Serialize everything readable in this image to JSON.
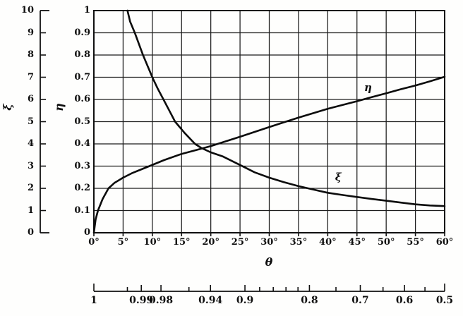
{
  "figure": {
    "background": "#fefefd",
    "ink_color": "#101010",
    "description": "Scanned textbook chart: curves η(θ) rising and ξ(θ) falling versus angle θ, with auxiliary cos θ scale below"
  },
  "chart_data": {
    "type": "line",
    "title": "",
    "grid": true,
    "legend_position": "inline-curve-labels",
    "axes": {
      "theta": {
        "title": "θ",
        "position": "bottom",
        "min": 0,
        "max": 60,
        "unit": "degrees",
        "tick_values": [
          0,
          5,
          10,
          15,
          20,
          25,
          30,
          35,
          40,
          45,
          50,
          55,
          60
        ],
        "tick_labels": [
          "0°",
          "5°",
          "10°",
          "15°",
          "20°",
          "25°",
          "30°",
          "35°",
          "40°",
          "45°",
          "50°",
          "55°",
          "60°"
        ]
      },
      "xi": {
        "title": "ξ",
        "position": "outer-left",
        "min": 0,
        "max": 10,
        "tick_values": [
          0,
          1,
          2,
          3,
          4,
          5,
          6,
          7,
          8,
          9,
          10
        ],
        "tick_labels": [
          "0",
          "1",
          "2",
          "3",
          "4",
          "5",
          "6",
          "7",
          "8",
          "9",
          "10"
        ]
      },
      "eta": {
        "title": "η",
        "position": "inner-left",
        "min": 0,
        "max": 1,
        "tick_values": [
          0,
          0.1,
          0.2,
          0.3,
          0.4,
          0.5,
          0.6,
          0.7,
          0.8,
          0.9,
          1
        ],
        "tick_labels": [
          "0",
          "0.1",
          "0.2",
          "0.3",
          "0.4",
          "0.5",
          "0.6",
          "0.7",
          "0.8",
          "0.9",
          "1"
        ]
      },
      "cos_theta": {
        "description": "auxiliary nonlinear scale: cos θ plotted along the linear θ axis",
        "position": "detached-bottom",
        "ticks": [
          {
            "value": 1.0,
            "label": "1"
          },
          {
            "value": 0.995,
            "label": ""
          },
          {
            "value": 0.99,
            "label": "0.99"
          },
          {
            "value": 0.98,
            "label": "0.98"
          },
          {
            "value": 0.96,
            "label": ""
          },
          {
            "value": 0.94,
            "label": "0.94"
          },
          {
            "value": 0.9,
            "label": "0.9"
          },
          {
            "value": 0.88,
            "label": ""
          },
          {
            "value": 0.86,
            "label": ""
          },
          {
            "value": 0.84,
            "label": ""
          },
          {
            "value": 0.82,
            "label": ""
          },
          {
            "value": 0.8,
            "label": "0.8"
          },
          {
            "value": 0.75,
            "label": ""
          },
          {
            "value": 0.7,
            "label": "0.7"
          },
          {
            "value": 0.65,
            "label": ""
          },
          {
            "value": 0.6,
            "label": "0.6"
          },
          {
            "value": 0.55,
            "label": ""
          },
          {
            "value": 0.5,
            "label": "0.5"
          }
        ]
      }
    },
    "series": [
      {
        "name": "η",
        "id": "eta",
        "axis": "eta",
        "points": [
          [
            0,
            0
          ],
          [
            0.3,
            0.06
          ],
          [
            0.7,
            0.1
          ],
          [
            1.5,
            0.152
          ],
          [
            2.5,
            0.2
          ],
          [
            3.5,
            0.224
          ],
          [
            5,
            0.248
          ],
          [
            6.5,
            0.268
          ],
          [
            8,
            0.284
          ],
          [
            9.5,
            0.3
          ],
          [
            12,
            0.327
          ],
          [
            15,
            0.355
          ],
          [
            18,
            0.376
          ],
          [
            20,
            0.39
          ],
          [
            22.5,
            0.411
          ],
          [
            25,
            0.432
          ],
          [
            27.5,
            0.454
          ],
          [
            30,
            0.476
          ],
          [
            32.5,
            0.497
          ],
          [
            35,
            0.518
          ],
          [
            37.5,
            0.538
          ],
          [
            40,
            0.558
          ],
          [
            42.5,
            0.575
          ],
          [
            45,
            0.592
          ],
          [
            47.5,
            0.61
          ],
          [
            50,
            0.628
          ],
          [
            52.5,
            0.646
          ],
          [
            55,
            0.663
          ],
          [
            57.5,
            0.682
          ],
          [
            60,
            0.702
          ]
        ]
      },
      {
        "name": "ξ",
        "id": "xi",
        "axis": "xi",
        "points": [
          [
            5.75,
            10
          ],
          [
            6.2,
            9.5
          ],
          [
            7,
            9
          ],
          [
            7.7,
            8.5
          ],
          [
            8.4,
            8
          ],
          [
            9.2,
            7.5
          ],
          [
            10,
            7
          ],
          [
            10.9,
            6.5
          ],
          [
            11.9,
            6
          ],
          [
            12.9,
            5.5
          ],
          [
            13.9,
            5
          ],
          [
            15.5,
            4.5
          ],
          [
            17.3,
            4
          ],
          [
            18.3,
            3.83
          ],
          [
            20,
            3.62
          ],
          [
            22,
            3.44
          ],
          [
            25,
            3.05
          ],
          [
            27.5,
            2.72
          ],
          [
            30,
            2.48
          ],
          [
            32.5,
            2.28
          ],
          [
            35,
            2.1
          ],
          [
            37.5,
            1.95
          ],
          [
            40,
            1.8
          ],
          [
            42.5,
            1.7
          ],
          [
            45,
            1.61
          ],
          [
            47.5,
            1.52
          ],
          [
            50,
            1.44
          ],
          [
            52.5,
            1.36
          ],
          [
            55,
            1.28
          ],
          [
            57.5,
            1.23
          ],
          [
            60,
            1.2
          ]
        ]
      }
    ],
    "annotations": [
      {
        "id": "eta",
        "text": "η",
        "theta": 46.9,
        "y": 0.655
      },
      {
        "id": "xi",
        "text": "ξ",
        "theta": 41.8,
        "y": 0.252
      }
    ],
    "intersection_note": "curves cross near θ ≈ 18°, η ≈ 0.38 (ξ ≈ 3.8)"
  }
}
